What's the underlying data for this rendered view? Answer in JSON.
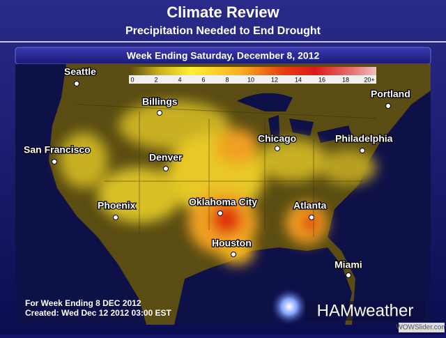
{
  "header": {
    "title": "Climate Review",
    "subtitle": "Precipitation Needed to End Drought"
  },
  "panel": {
    "title": "Week Ending Saturday, December 8, 2012"
  },
  "legend": {
    "labels": [
      "0",
      "2",
      "4",
      "6",
      "8",
      "10",
      "12",
      "14",
      "16",
      "18",
      "20+"
    ]
  },
  "cities": [
    "Seattle",
    "Billings",
    "Portland",
    "San Francisco",
    "Denver",
    "Chicago",
    "Philadelphia",
    "Phoenix",
    "Oklahoma City",
    "Atlanta",
    "Houston",
    "Miami"
  ],
  "footer": {
    "line1": "For Week Ending 8 DEC 2012",
    "line2": "Created: Wed Dec 12 2012 03:00 EST"
  },
  "logo": "HAMweather",
  "watermark": "WOWSlider.com"
}
